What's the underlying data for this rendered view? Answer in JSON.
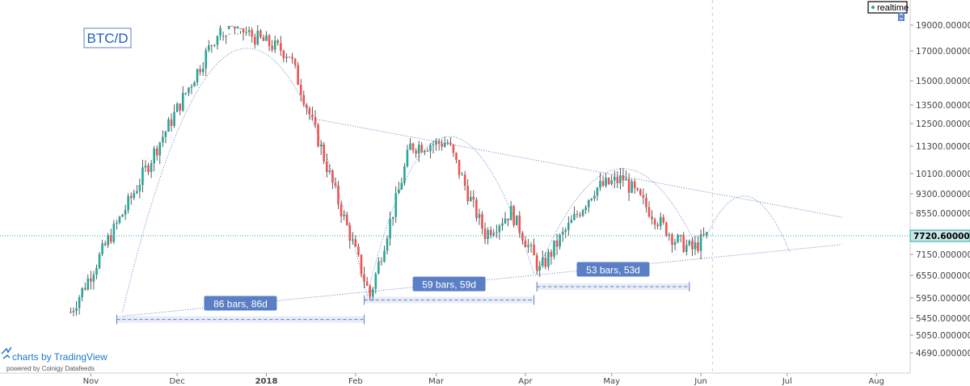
{
  "chart_data": {
    "type": "candlestick",
    "symbol": "BTC/D",
    "ylim": [
      4300,
      21000
    ],
    "y_ticks": [
      "19000.00000000",
      "17000.00000000",
      "15000.00000000",
      "13500.00000000",
      "12500.00000000",
      "11300.00000000",
      "10100.00000000",
      "9300.00000000",
      "8550.00000000",
      "7720.60000000",
      "7150.00000000",
      "6550.00000000",
      "5950.00000000",
      "5450.00000000",
      "5050.00000000",
      "4690.00000000"
    ],
    "x_ticks": [
      "Nov",
      "Dec",
      "2018",
      "Feb",
      "Mar",
      "Apr",
      "May",
      "Jun",
      "Jul",
      "Aug"
    ],
    "x_tick_bold": "2018",
    "last_price": "7720.60000000",
    "realtime_label": "realtime",
    "measurements": [
      {
        "label": "86 bars, 86d"
      },
      {
        "label": "59 bars, 59d"
      },
      {
        "label": "53 bars, 53d"
      }
    ],
    "anchors": [
      {
        "date": "2017-10-25",
        "price": 5600
      },
      {
        "date": "2017-12-17",
        "price": 19300
      },
      {
        "date": "2018-01-09",
        "price": 16800
      },
      {
        "date": "2018-02-06",
        "price": 6000
      },
      {
        "date": "2018-02-20",
        "price": 11300
      },
      {
        "date": "2018-03-05",
        "price": 11500
      },
      {
        "date": "2018-03-18",
        "price": 7800
      },
      {
        "date": "2018-03-27",
        "price": 8600
      },
      {
        "date": "2018-04-06",
        "price": 6700
      },
      {
        "date": "2018-04-25",
        "price": 9500
      },
      {
        "date": "2018-05-05",
        "price": 9900
      },
      {
        "date": "2018-05-23",
        "price": 7600
      },
      {
        "date": "2018-05-29",
        "price": 7300
      },
      {
        "date": "2018-06-03",
        "price": 7720
      }
    ],
    "colors": {
      "up": "#26a69a",
      "down": "#ef5350",
      "trend": "#5b7fc4",
      "label_bg": "#5b7fc4",
      "last_price_line": "#26a69a"
    }
  },
  "branding": {
    "logo_text": "charts by TradingView",
    "powered_text": "powered by Coinigy Datafeeds"
  }
}
